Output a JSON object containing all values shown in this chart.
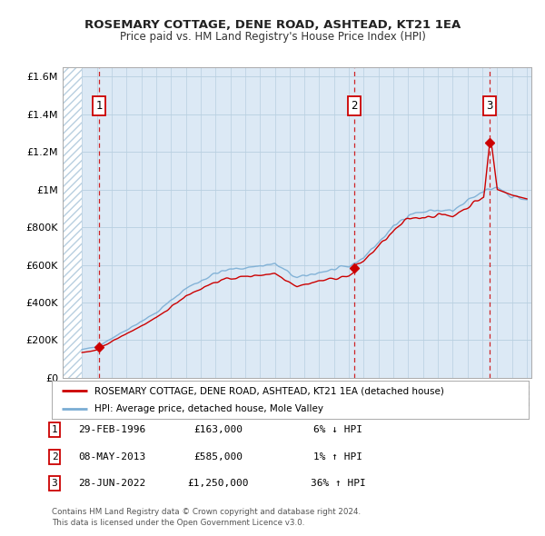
{
  "title": "ROSEMARY COTTAGE, DENE ROAD, ASHTEAD, KT21 1EA",
  "subtitle": "Price paid vs. HM Land Registry's House Price Index (HPI)",
  "bg_color": "#dce9f5",
  "hatch_color": "#b8cfe0",
  "grid_color": "#b8cfe0",
  "sale_color": "#cc0000",
  "hpi_color": "#7aadd4",
  "sale_dates_decimal": [
    1996.16,
    2013.37,
    2022.49
  ],
  "sale_prices": [
    163000,
    585000,
    1250000
  ],
  "sale_labels": [
    "1",
    "2",
    "3"
  ],
  "legend_sale": "ROSEMARY COTTAGE, DENE ROAD, ASHTEAD, KT21 1EA (detached house)",
  "legend_hpi": "HPI: Average price, detached house, Mole Valley",
  "table_rows": [
    [
      "1",
      "29-FEB-1996",
      "£163,000",
      "6% ↓ HPI"
    ],
    [
      "2",
      "08-MAY-2013",
      "£585,000",
      "1% ↑ HPI"
    ],
    [
      "3",
      "28-JUN-2022",
      "£1,250,000",
      "36% ↑ HPI"
    ]
  ],
  "footer": "Contains HM Land Registry data © Crown copyright and database right 2024.\nThis data is licensed under the Open Government Licence v3.0.",
  "ylim": [
    0,
    1650000
  ],
  "xlim": [
    1993.7,
    2025.3
  ],
  "yticks": [
    0,
    200000,
    400000,
    600000,
    800000,
    1000000,
    1200000,
    1400000,
    1600000
  ],
  "ytick_labels": [
    "£0",
    "£200K",
    "£400K",
    "£600K",
    "£800K",
    "£1M",
    "£1.2M",
    "£1.4M",
    "£1.6M"
  ],
  "xticks": [
    1994,
    1995,
    1996,
    1997,
    1998,
    1999,
    2000,
    2001,
    2002,
    2003,
    2004,
    2005,
    2006,
    2007,
    2008,
    2009,
    2010,
    2011,
    2012,
    2013,
    2014,
    2015,
    2016,
    2017,
    2018,
    2019,
    2020,
    2021,
    2022,
    2023,
    2024,
    2025
  ]
}
